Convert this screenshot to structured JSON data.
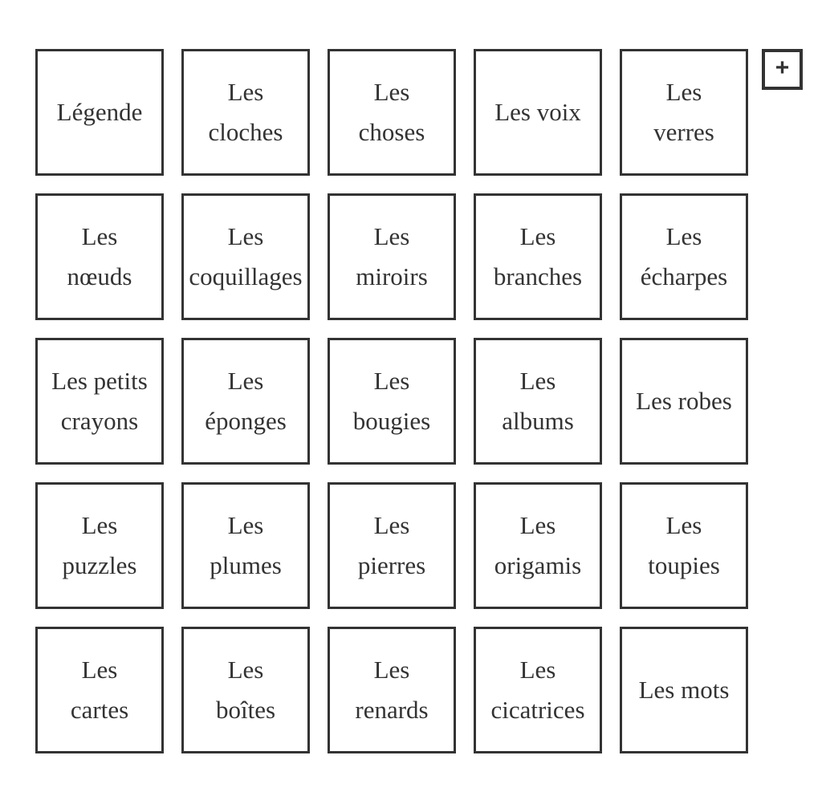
{
  "colors": {
    "background": "#ffffff",
    "card_border": "#333333",
    "text": "#333333"
  },
  "grid": {
    "rows": 5,
    "cols": 5,
    "cards": [
      {
        "label": "Légende"
      },
      {
        "label": "Les\ncloches"
      },
      {
        "label": "Les\nchoses"
      },
      {
        "label": "Les voix"
      },
      {
        "label": "Les\nverres"
      },
      {
        "label": "Les\nnœuds"
      },
      {
        "label": "Les\ncoquillages"
      },
      {
        "label": "Les\nmiroirs"
      },
      {
        "label": "Les\nbranches"
      },
      {
        "label": "Les\nécharpes"
      },
      {
        "label": "Les petits\ncrayons"
      },
      {
        "label": "Les\néponges"
      },
      {
        "label": "Les\nbougies"
      },
      {
        "label": "Les\nalbums"
      },
      {
        "label": "Les robes"
      },
      {
        "label": "Les\npuzzles"
      },
      {
        "label": "Les\nplumes"
      },
      {
        "label": "Les\npierres"
      },
      {
        "label": "Les\norigamis"
      },
      {
        "label": "Les\ntoupies"
      },
      {
        "label": "Les\ncartes"
      },
      {
        "label": "Les\nboîtes"
      },
      {
        "label": "Les\nrenards"
      },
      {
        "label": "Les\ncicatrices"
      },
      {
        "label": "Les mots"
      }
    ]
  },
  "add_button": {
    "label": "+"
  }
}
